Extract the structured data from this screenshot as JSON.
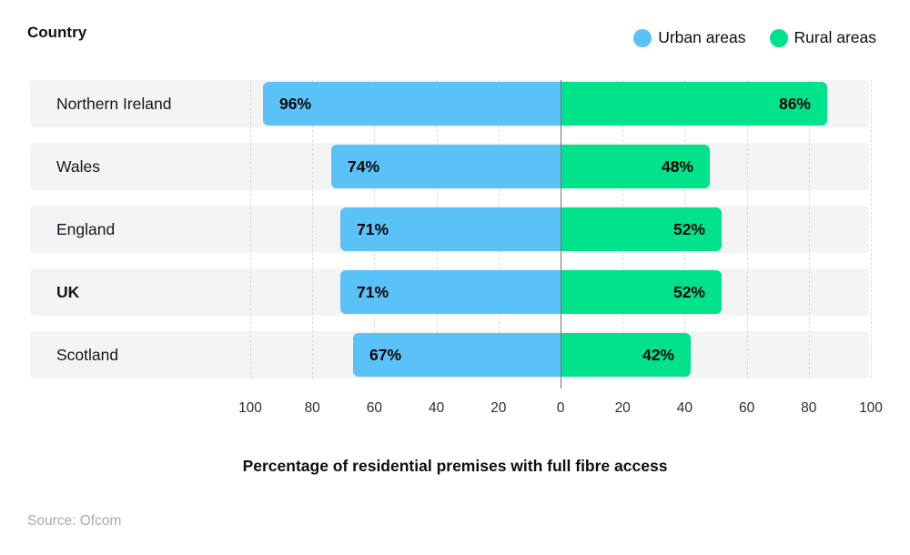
{
  "header": {
    "country_label": "Country"
  },
  "legend": {
    "items": [
      {
        "label": "Urban areas",
        "color": "#5bc2f8"
      },
      {
        "label": "Rural areas",
        "color": "#00e28c"
      }
    ]
  },
  "chart_data": {
    "type": "bar",
    "variant": "horizontal-diverging",
    "categories": [
      {
        "label": "Northern Ireland",
        "bold": false
      },
      {
        "label": "Wales",
        "bold": false
      },
      {
        "label": "England",
        "bold": false
      },
      {
        "label": "UK",
        "bold": true
      },
      {
        "label": "Scotland",
        "bold": false
      }
    ],
    "series": [
      {
        "name": "Urban areas",
        "direction": "left",
        "color": "#5bc2f8",
        "values": [
          96,
          74,
          71,
          71,
          67
        ],
        "labels": [
          "96%",
          "74%",
          "71%",
          "71%",
          "67%"
        ]
      },
      {
        "name": "Rural areas",
        "direction": "right",
        "color": "#00e28c",
        "values": [
          86,
          48,
          52,
          52,
          42
        ],
        "labels": [
          "86%",
          "48%",
          "52%",
          "52%",
          "42%"
        ]
      }
    ],
    "x_axis": {
      "tick_labels": [
        "100",
        "80",
        "60",
        "40",
        "20",
        "0",
        "20",
        "40",
        "60",
        "80",
        "100"
      ],
      "range": [
        -100,
        100
      ],
      "gridlines": "dashed"
    },
    "xlabel": "Percentage of residential premises with full fibre access",
    "source": "Source: Ofcom",
    "style": {
      "stripe_color": "#f4f4f5",
      "gridline_color": "#dbdbdb",
      "zero_line_color": "#74747a"
    }
  }
}
